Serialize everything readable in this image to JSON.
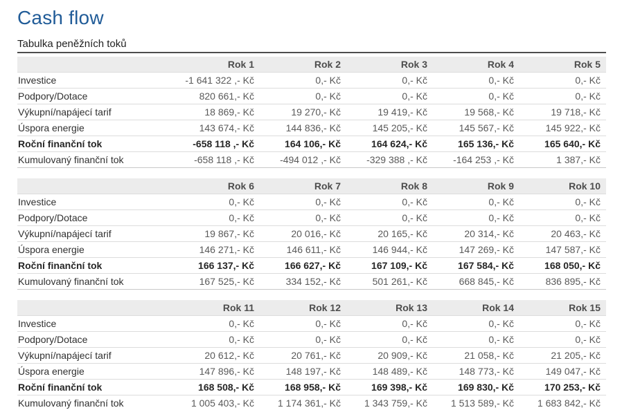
{
  "page": {
    "title": "Cash flow",
    "subtitle": "Tabulka peněžních toků"
  },
  "colors": {
    "title_color": "#215C98",
    "rule_color": "#4D4D4D",
    "header_bg": "#ECECEC",
    "header_text": "#4D4D4D",
    "label_text": "#303030",
    "value_text": "#595959",
    "bold_text": "#262626",
    "row_border": "#DCDCDC",
    "table_bottom": "#C8C8C8"
  },
  "currency": "Kč",
  "tables": [
    {
      "name": "years-1-5",
      "columns": [
        "Rok 1",
        "Rok 2",
        "Rok 3",
        "Rok 4",
        "Rok 5"
      ],
      "rows": [
        {
          "label": "Investice",
          "bold": false,
          "values": [
            "-1 641 322 ,- Kč",
            "0,- Kč",
            "0,- Kč",
            "0,- Kč",
            "0,- Kč"
          ]
        },
        {
          "label": "Podpory/Dotace",
          "bold": false,
          "values": [
            "820 661,- Kč",
            "0,- Kč",
            "0,- Kč",
            "0,- Kč",
            "0,- Kč"
          ]
        },
        {
          "label": "Výkupní/napájecí tarif",
          "bold": false,
          "values": [
            "18 869,- Kč",
            "19 270,- Kč",
            "19 419,- Kč",
            "19 568,- Kč",
            "19 718,- Kč"
          ]
        },
        {
          "label": "Úspora energie",
          "bold": false,
          "values": [
            "143 674,- Kč",
            "144 836,- Kč",
            "145 205,- Kč",
            "145 567,- Kč",
            "145 922,- Kč"
          ]
        },
        {
          "label": "Roční finanční tok",
          "bold": true,
          "values": [
            "-658 118 ,- Kč",
            "164 106,- Kč",
            "164 624,- Kč",
            "165 136,- Kč",
            "165 640,- Kč"
          ]
        },
        {
          "label": "Kumulovaný finanční tok",
          "bold": false,
          "values": [
            "-658 118 ,- Kč",
            "-494 012 ,- Kč",
            "-329 388 ,- Kč",
            "-164 253 ,- Kč",
            "1 387,- Kč"
          ]
        }
      ]
    },
    {
      "name": "years-6-10",
      "columns": [
        "Rok 6",
        "Rok 7",
        "Rok 8",
        "Rok 9",
        "Rok 10"
      ],
      "rows": [
        {
          "label": "Investice",
          "bold": false,
          "values": [
            "0,- Kč",
            "0,- Kč",
            "0,- Kč",
            "0,- Kč",
            "0,- Kč"
          ]
        },
        {
          "label": "Podpory/Dotace",
          "bold": false,
          "values": [
            "0,- Kč",
            "0,- Kč",
            "0,- Kč",
            "0,- Kč",
            "0,- Kč"
          ]
        },
        {
          "label": "Výkupní/napájecí tarif",
          "bold": false,
          "values": [
            "19 867,- Kč",
            "20 016,- Kč",
            "20 165,- Kč",
            "20 314,- Kč",
            "20 463,- Kč"
          ]
        },
        {
          "label": "Úspora energie",
          "bold": false,
          "values": [
            "146 271,- Kč",
            "146 611,- Kč",
            "146 944,- Kč",
            "147 269,- Kč",
            "147 587,- Kč"
          ]
        },
        {
          "label": "Roční finanční tok",
          "bold": true,
          "values": [
            "166 137,- Kč",
            "166 627,- Kč",
            "167 109,- Kč",
            "167 584,- Kč",
            "168 050,- Kč"
          ]
        },
        {
          "label": "Kumulovaný finanční tok",
          "bold": false,
          "values": [
            "167 525,- Kč",
            "334 152,- Kč",
            "501 261,- Kč",
            "668 845,- Kč",
            "836 895,- Kč"
          ]
        }
      ]
    },
    {
      "name": "years-11-15",
      "columns": [
        "Rok 11",
        "Rok 12",
        "Rok 13",
        "Rok 14",
        "Rok 15"
      ],
      "rows": [
        {
          "label": "Investice",
          "bold": false,
          "values": [
            "0,- Kč",
            "0,- Kč",
            "0,- Kč",
            "0,- Kč",
            "0,- Kč"
          ]
        },
        {
          "label": "Podpory/Dotace",
          "bold": false,
          "values": [
            "0,- Kč",
            "0,- Kč",
            "0,- Kč",
            "0,- Kč",
            "0,- Kč"
          ]
        },
        {
          "label": "Výkupní/napájecí tarif",
          "bold": false,
          "values": [
            "20 612,- Kč",
            "20 761,- Kč",
            "20 909,- Kč",
            "21 058,- Kč",
            "21 205,- Kč"
          ]
        },
        {
          "label": "Úspora energie",
          "bold": false,
          "values": [
            "147 896,- Kč",
            "148 197,- Kč",
            "148 489,- Kč",
            "148 773,- Kč",
            "149 047,- Kč"
          ]
        },
        {
          "label": "Roční finanční tok",
          "bold": true,
          "values": [
            "168 508,- Kč",
            "168 958,- Kč",
            "169 398,- Kč",
            "169 830,- Kč",
            "170 253,- Kč"
          ]
        },
        {
          "label": "Kumulovaný finanční tok",
          "bold": false,
          "values": [
            "1 005 403,- Kč",
            "1 174 361,- Kč",
            "1 343 759,- Kč",
            "1 513 589,- Kč",
            "1 683 842,- Kč"
          ]
        }
      ]
    }
  ]
}
